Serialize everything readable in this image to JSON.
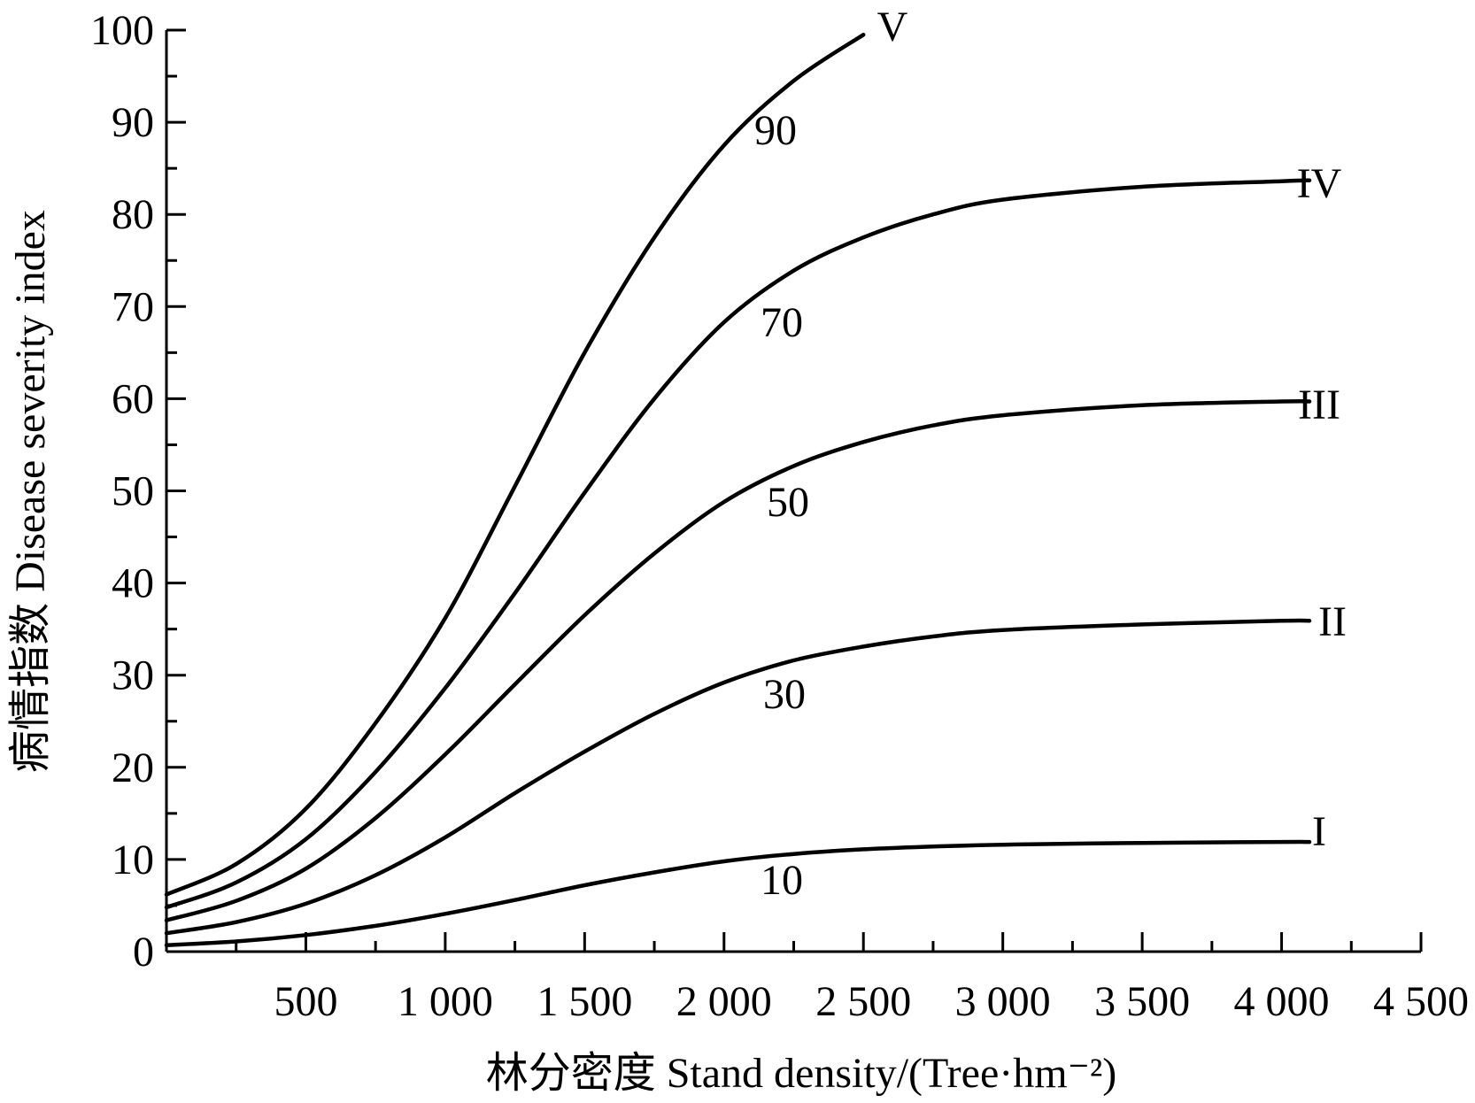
{
  "chart_data": {
    "type": "line",
    "xlabel": "林分密度  Stand density/(Tree·hm⁻²)",
    "ylabel": "病情指数  Disease severity index",
    "xlim": [
      0,
      4500
    ],
    "ylim": [
      0,
      100
    ],
    "x_ticks": [
      500,
      1000,
      1500,
      2000,
      2500,
      3000,
      3500,
      4000,
      4500
    ],
    "x_tick_labels": [
      "500",
      "1 000",
      "1 500",
      "2 000",
      "2 500",
      "3 000",
      "3 500",
      "4 000",
      "4 500"
    ],
    "y_ticks": [
      0,
      10,
      20,
      30,
      40,
      50,
      60,
      70,
      80,
      90,
      100
    ],
    "y_tick_labels": [
      "0",
      "10",
      "20",
      "30",
      "40",
      "50",
      "60",
      "70",
      "80",
      "90",
      "100"
    ],
    "grid": false,
    "series": [
      {
        "name": "I",
        "mid_label": "10",
        "points": [
          [
            0,
            0.7
          ],
          [
            250,
            1.1
          ],
          [
            500,
            1.8
          ],
          [
            750,
            2.8
          ],
          [
            1000,
            4.1
          ],
          [
            1250,
            5.6
          ],
          [
            1500,
            7.2
          ],
          [
            1750,
            8.6
          ],
          [
            2000,
            9.8
          ],
          [
            2250,
            10.6
          ],
          [
            2500,
            11.1
          ],
          [
            2750,
            11.4
          ],
          [
            3000,
            11.6
          ],
          [
            3500,
            11.8
          ],
          [
            4000,
            11.9
          ],
          [
            4100,
            11.9
          ]
        ]
      },
      {
        "name": "II",
        "mid_label": "30",
        "points": [
          [
            0,
            2.0
          ],
          [
            250,
            3.2
          ],
          [
            500,
            5.2
          ],
          [
            750,
            8.3
          ],
          [
            1000,
            12.4
          ],
          [
            1250,
            17.2
          ],
          [
            1500,
            21.7
          ],
          [
            1750,
            25.8
          ],
          [
            2000,
            29.2
          ],
          [
            2250,
            31.6
          ],
          [
            2500,
            33.1
          ],
          [
            2750,
            34.2
          ],
          [
            3000,
            34.9
          ],
          [
            3500,
            35.5
          ],
          [
            4000,
            35.9
          ],
          [
            4100,
            35.9
          ]
        ]
      },
      {
        "name": "III",
        "mid_label": "50",
        "points": [
          [
            0,
            3.4
          ],
          [
            250,
            5.5
          ],
          [
            500,
            9.0
          ],
          [
            750,
            14.5
          ],
          [
            1000,
            21.4
          ],
          [
            1250,
            29.0
          ],
          [
            1500,
            36.5
          ],
          [
            1750,
            43.2
          ],
          [
            2000,
            48.8
          ],
          [
            2250,
            52.7
          ],
          [
            2500,
            55.3
          ],
          [
            2750,
            57.1
          ],
          [
            3000,
            58.2
          ],
          [
            3500,
            59.3
          ],
          [
            4000,
            59.7
          ],
          [
            4100,
            59.7
          ]
        ]
      },
      {
        "name": "IV",
        "mid_label": "70",
        "points": [
          [
            0,
            4.8
          ],
          [
            250,
            7.5
          ],
          [
            500,
            12.2
          ],
          [
            750,
            19.5
          ],
          [
            1000,
            28.6
          ],
          [
            1250,
            38.9
          ],
          [
            1500,
            49.8
          ],
          [
            1750,
            60.0
          ],
          [
            2000,
            68.3
          ],
          [
            2250,
            73.9
          ],
          [
            2500,
            77.5
          ],
          [
            2750,
            80.0
          ],
          [
            3000,
            81.6
          ],
          [
            3500,
            83.0
          ],
          [
            4000,
            83.6
          ],
          [
            4100,
            83.7
          ]
        ]
      },
      {
        "name": "V",
        "mid_label": "90",
        "points": [
          [
            0,
            6.2
          ],
          [
            250,
            9.5
          ],
          [
            500,
            15.5
          ],
          [
            750,
            24.8
          ],
          [
            1000,
            36.2
          ],
          [
            1250,
            50.5
          ],
          [
            1500,
            65.0
          ],
          [
            1750,
            77.5
          ],
          [
            2000,
            87.5
          ],
          [
            2250,
            94.5
          ],
          [
            2500,
            99.5
          ]
        ]
      }
    ]
  }
}
